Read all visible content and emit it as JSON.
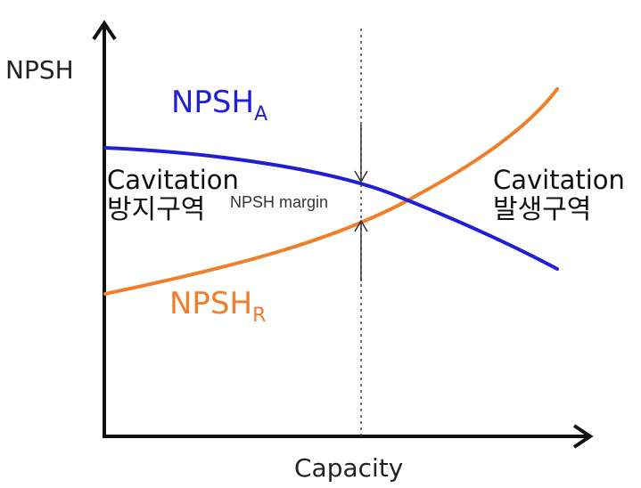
{
  "diagram": {
    "y_axis_label": "NPSH",
    "x_axis_label": "Capacity",
    "curves": [
      {
        "name_main": "NPSH",
        "name_sub": "A",
        "color": "#1f1fd6",
        "trend": "decreasing"
      },
      {
        "name_main": "NPSH",
        "name_sub": "R",
        "color": "#f07e2a",
        "trend": "increasing"
      }
    ],
    "zones": {
      "left": {
        "title": "Cavitation",
        "subtitle": "방지구역"
      },
      "right": {
        "title": "Cavitation",
        "subtitle": "발생구역"
      }
    },
    "margin_label": "NPSH margin",
    "axis_color": "#111111",
    "reference_line": "dotted vertical"
  }
}
